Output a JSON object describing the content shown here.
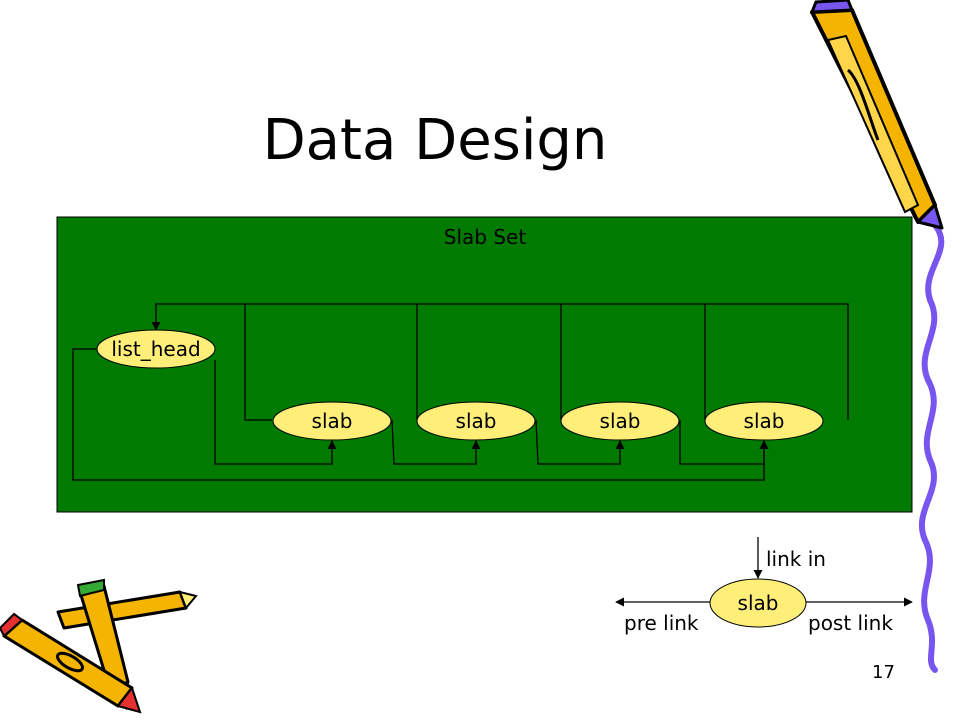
{
  "slide": {
    "title": "Data Design",
    "number": "17"
  },
  "diagram": {
    "container_label": "Slab Set",
    "head_label": "list_head",
    "slab_labels": [
      "slab",
      "slab",
      "slab",
      "slab"
    ],
    "legend": {
      "node_label": "slab",
      "link_in": "link in",
      "pre_link": "pre link",
      "post_link": "post link"
    },
    "colors": {
      "container": "#007A00",
      "node_fill": "#FFEE77",
      "line": "#000000",
      "pencil_body": "#F4B400",
      "pencil_tip_purple": "#7755EE",
      "pencil_red": "#E53030",
      "pencil_green": "#33AA33"
    },
    "icons": [
      "pencil-icon",
      "crossed-pencils-icon"
    ]
  }
}
